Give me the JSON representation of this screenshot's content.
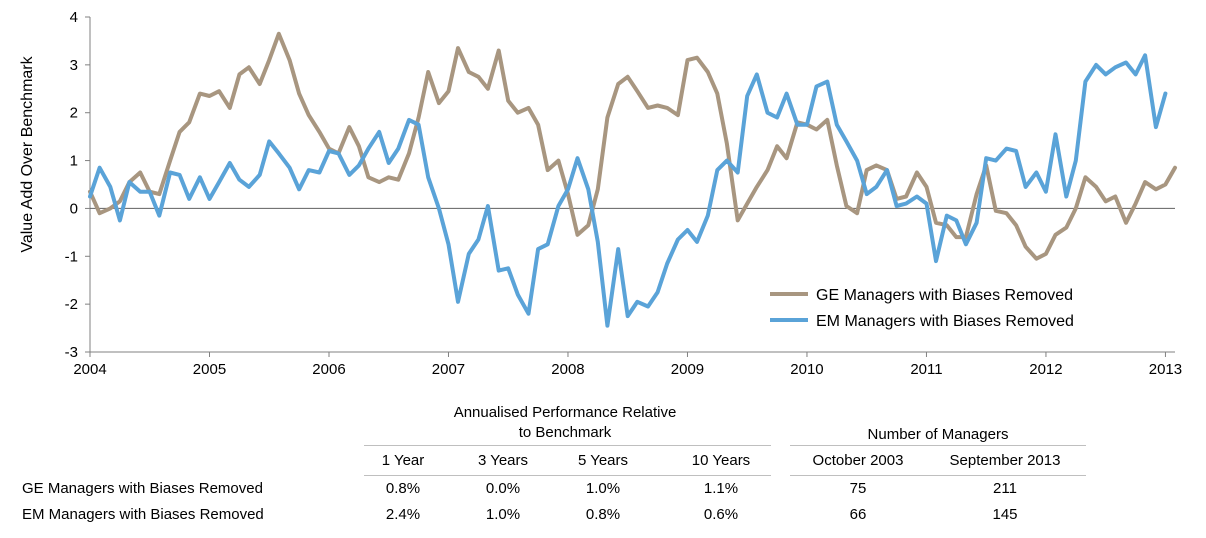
{
  "chart_data": {
    "type": "line",
    "ylabel": "Value Add Over Benchmark",
    "xlabel": "",
    "ylim": [
      -3,
      4
    ],
    "xlim": [
      2004,
      2013.08
    ],
    "yticks": [
      -3,
      -2,
      -1,
      0,
      1,
      2,
      3,
      4
    ],
    "xticks": [
      2004,
      2005,
      2006,
      2007,
      2008,
      2009,
      2010,
      2011,
      2012,
      2013
    ],
    "xtick_labels": [
      "2004",
      "2005",
      "2006",
      "2007",
      "2008",
      "2009",
      "2010",
      "2011",
      "2012",
      "2013"
    ],
    "grid": false,
    "legend_position": "bottom-right",
    "series": [
      {
        "name": "GE Managers with Biases Removed",
        "color": "#a89680",
        "points": [
          [
            2004.0,
            0.35
          ],
          [
            2004.08,
            -0.1
          ],
          [
            2004.17,
            0.0
          ],
          [
            2004.25,
            0.15
          ],
          [
            2004.33,
            0.55
          ],
          [
            2004.42,
            0.75
          ],
          [
            2004.5,
            0.35
          ],
          [
            2004.58,
            0.3
          ],
          [
            2004.67,
            1.0
          ],
          [
            2004.75,
            1.6
          ],
          [
            2004.83,
            1.8
          ],
          [
            2004.92,
            2.4
          ],
          [
            2005.0,
            2.35
          ],
          [
            2005.08,
            2.45
          ],
          [
            2005.17,
            2.1
          ],
          [
            2005.25,
            2.8
          ],
          [
            2005.33,
            2.95
          ],
          [
            2005.42,
            2.6
          ],
          [
            2005.5,
            3.1
          ],
          [
            2005.58,
            3.65
          ],
          [
            2005.67,
            3.1
          ],
          [
            2005.75,
            2.4
          ],
          [
            2005.83,
            1.95
          ],
          [
            2005.92,
            1.6
          ],
          [
            2006.0,
            1.25
          ],
          [
            2006.08,
            1.15
          ],
          [
            2006.17,
            1.7
          ],
          [
            2006.25,
            1.3
          ],
          [
            2006.33,
            0.65
          ],
          [
            2006.42,
            0.55
          ],
          [
            2006.5,
            0.65
          ],
          [
            2006.58,
            0.6
          ],
          [
            2006.67,
            1.15
          ],
          [
            2006.75,
            1.9
          ],
          [
            2006.83,
            2.85
          ],
          [
            2006.92,
            2.2
          ],
          [
            2007.0,
            2.45
          ],
          [
            2007.08,
            3.35
          ],
          [
            2007.17,
            2.85
          ],
          [
            2007.25,
            2.75
          ],
          [
            2007.33,
            2.5
          ],
          [
            2007.42,
            3.3
          ],
          [
            2007.5,
            2.25
          ],
          [
            2007.58,
            2.0
          ],
          [
            2007.67,
            2.1
          ],
          [
            2007.75,
            1.75
          ],
          [
            2007.83,
            0.8
          ],
          [
            2007.92,
            1.0
          ],
          [
            2008.0,
            0.3
          ],
          [
            2008.08,
            -0.55
          ],
          [
            2008.17,
            -0.35
          ],
          [
            2008.25,
            0.4
          ],
          [
            2008.33,
            1.9
          ],
          [
            2008.42,
            2.6
          ],
          [
            2008.5,
            2.75
          ],
          [
            2008.58,
            2.45
          ],
          [
            2008.67,
            2.1
          ],
          [
            2008.75,
            2.15
          ],
          [
            2008.83,
            2.1
          ],
          [
            2008.92,
            1.95
          ],
          [
            2009.0,
            3.1
          ],
          [
            2009.08,
            3.15
          ],
          [
            2009.17,
            2.85
          ],
          [
            2009.25,
            2.4
          ],
          [
            2009.33,
            1.35
          ],
          [
            2009.42,
            -0.25
          ],
          [
            2009.5,
            0.1
          ],
          [
            2009.58,
            0.45
          ],
          [
            2009.67,
            0.8
          ],
          [
            2009.75,
            1.3
          ],
          [
            2009.83,
            1.05
          ],
          [
            2009.92,
            1.8
          ],
          [
            2010.0,
            1.75
          ],
          [
            2010.08,
            1.65
          ],
          [
            2010.17,
            1.85
          ],
          [
            2010.25,
            0.9
          ],
          [
            2010.33,
            0.05
          ],
          [
            2010.42,
            -0.1
          ],
          [
            2010.5,
            0.8
          ],
          [
            2010.58,
            0.9
          ],
          [
            2010.67,
            0.8
          ],
          [
            2010.75,
            0.2
          ],
          [
            2010.83,
            0.25
          ],
          [
            2010.92,
            0.75
          ],
          [
            2011.0,
            0.45
          ],
          [
            2011.08,
            -0.3
          ],
          [
            2011.17,
            -0.35
          ],
          [
            2011.25,
            -0.6
          ],
          [
            2011.33,
            -0.6
          ],
          [
            2011.42,
            0.3
          ],
          [
            2011.5,
            0.9
          ],
          [
            2011.58,
            -0.05
          ],
          [
            2011.67,
            -0.1
          ],
          [
            2011.75,
            -0.35
          ],
          [
            2011.83,
            -0.8
          ],
          [
            2011.92,
            -1.05
          ],
          [
            2012.0,
            -0.95
          ],
          [
            2012.08,
            -0.55
          ],
          [
            2012.17,
            -0.4
          ],
          [
            2012.25,
            0.0
          ],
          [
            2012.33,
            0.65
          ],
          [
            2012.42,
            0.45
          ],
          [
            2012.5,
            0.15
          ],
          [
            2012.58,
            0.25
          ],
          [
            2012.67,
            -0.3
          ],
          [
            2012.75,
            0.1
          ],
          [
            2012.83,
            0.55
          ],
          [
            2012.92,
            0.4
          ],
          [
            2013.0,
            0.5
          ],
          [
            2013.08,
            0.85
          ]
        ]
      },
      {
        "name": "EM Managers with Biases Removed",
        "color": "#5aa3d8",
        "points": [
          [
            2004.0,
            0.25
          ],
          [
            2004.08,
            0.85
          ],
          [
            2004.17,
            0.45
          ],
          [
            2004.25,
            -0.25
          ],
          [
            2004.33,
            0.55
          ],
          [
            2004.42,
            0.35
          ],
          [
            2004.5,
            0.35
          ],
          [
            2004.58,
            -0.15
          ],
          [
            2004.67,
            0.75
          ],
          [
            2004.75,
            0.7
          ],
          [
            2004.83,
            0.2
          ],
          [
            2004.92,
            0.65
          ],
          [
            2005.0,
            0.2
          ],
          [
            2005.08,
            0.55
          ],
          [
            2005.17,
            0.95
          ],
          [
            2005.25,
            0.6
          ],
          [
            2005.33,
            0.45
          ],
          [
            2005.42,
            0.7
          ],
          [
            2005.5,
            1.4
          ],
          [
            2005.58,
            1.15
          ],
          [
            2005.67,
            0.85
          ],
          [
            2005.75,
            0.4
          ],
          [
            2005.83,
            0.8
          ],
          [
            2005.92,
            0.75
          ],
          [
            2006.0,
            1.2
          ],
          [
            2006.08,
            1.15
          ],
          [
            2006.17,
            0.7
          ],
          [
            2006.25,
            0.9
          ],
          [
            2006.33,
            1.25
          ],
          [
            2006.42,
            1.6
          ],
          [
            2006.5,
            0.95
          ],
          [
            2006.58,
            1.25
          ],
          [
            2006.67,
            1.85
          ],
          [
            2006.75,
            1.75
          ],
          [
            2006.83,
            0.65
          ],
          [
            2006.92,
            0.0
          ],
          [
            2007.0,
            -0.75
          ],
          [
            2007.08,
            -1.95
          ],
          [
            2007.17,
            -0.95
          ],
          [
            2007.25,
            -0.65
          ],
          [
            2007.33,
            0.05
          ],
          [
            2007.42,
            -1.3
          ],
          [
            2007.5,
            -1.25
          ],
          [
            2007.58,
            -1.8
          ],
          [
            2007.67,
            -2.2
          ],
          [
            2007.75,
            -0.85
          ],
          [
            2007.83,
            -0.75
          ],
          [
            2007.92,
            0.05
          ],
          [
            2008.0,
            0.4
          ],
          [
            2008.08,
            1.05
          ],
          [
            2008.17,
            0.4
          ],
          [
            2008.25,
            -0.7
          ],
          [
            2008.33,
            -2.45
          ],
          [
            2008.42,
            -0.85
          ],
          [
            2008.5,
            -2.25
          ],
          [
            2008.58,
            -1.95
          ],
          [
            2008.67,
            -2.05
          ],
          [
            2008.75,
            -1.75
          ],
          [
            2008.83,
            -1.15
          ],
          [
            2008.92,
            -0.65
          ],
          [
            2009.0,
            -0.45
          ],
          [
            2009.08,
            -0.7
          ],
          [
            2009.17,
            -0.15
          ],
          [
            2009.25,
            0.8
          ],
          [
            2009.33,
            1.0
          ],
          [
            2009.42,
            0.75
          ],
          [
            2009.5,
            2.35
          ],
          [
            2009.58,
            2.8
          ],
          [
            2009.67,
            2.0
          ],
          [
            2009.75,
            1.9
          ],
          [
            2009.83,
            2.4
          ],
          [
            2009.92,
            1.75
          ],
          [
            2010.0,
            1.75
          ],
          [
            2010.08,
            2.55
          ],
          [
            2010.17,
            2.65
          ],
          [
            2010.25,
            1.75
          ],
          [
            2010.33,
            1.4
          ],
          [
            2010.42,
            1.0
          ],
          [
            2010.5,
            0.3
          ],
          [
            2010.58,
            0.45
          ],
          [
            2010.67,
            0.8
          ],
          [
            2010.75,
            0.05
          ],
          [
            2010.83,
            0.1
          ],
          [
            2010.92,
            0.25
          ],
          [
            2011.0,
            0.1
          ],
          [
            2011.08,
            -1.1
          ],
          [
            2011.17,
            -0.15
          ],
          [
            2011.25,
            -0.25
          ],
          [
            2011.33,
            -0.75
          ],
          [
            2011.42,
            -0.3
          ],
          [
            2011.5,
            1.05
          ],
          [
            2011.58,
            1.0
          ],
          [
            2011.67,
            1.25
          ],
          [
            2011.75,
            1.2
          ],
          [
            2011.83,
            0.45
          ],
          [
            2011.92,
            0.75
          ],
          [
            2012.0,
            0.35
          ],
          [
            2012.08,
            1.55
          ],
          [
            2012.17,
            0.25
          ],
          [
            2012.25,
            1.0
          ],
          [
            2012.33,
            2.65
          ],
          [
            2012.42,
            3.0
          ],
          [
            2012.5,
            2.8
          ],
          [
            2012.58,
            2.95
          ],
          [
            2012.67,
            3.05
          ],
          [
            2012.75,
            2.8
          ],
          [
            2012.83,
            3.2
          ],
          [
            2012.92,
            1.7
          ],
          [
            2013.0,
            2.4
          ]
        ]
      }
    ]
  },
  "table": {
    "group1_header_line1": "Annualised Performance Relative",
    "group1_header_line2": "to Benchmark",
    "group2_header": "Number of Managers",
    "columns": [
      "1 Year",
      "3 Years",
      "5 Years",
      "10 Years",
      "October 2003",
      "September 2013"
    ],
    "rows": [
      {
        "label": "GE Managers with Biases Removed",
        "values": [
          "0.8%",
          "0.0%",
          "1.0%",
          "1.1%",
          "75",
          "211"
        ]
      },
      {
        "label": "EM Managers with Biases Removed",
        "values": [
          "2.4%",
          "1.0%",
          "0.8%",
          "0.6%",
          "66",
          "145"
        ]
      }
    ]
  }
}
